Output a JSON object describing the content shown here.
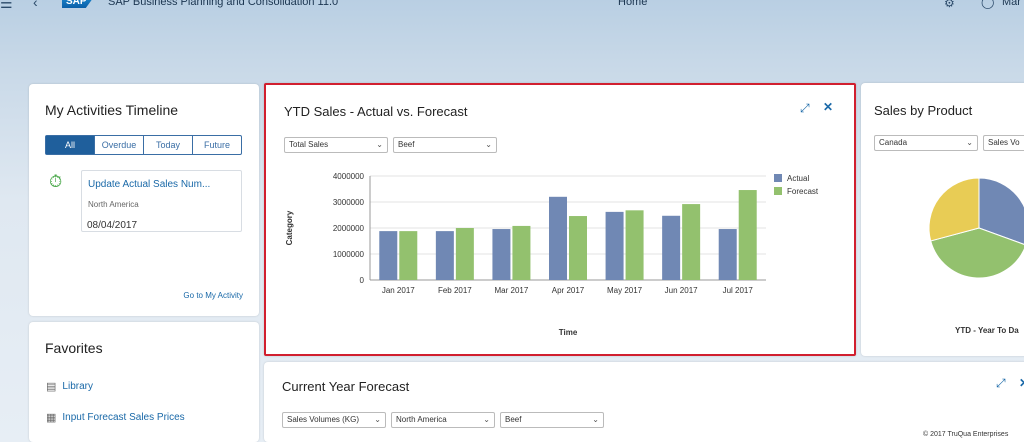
{
  "shell": {
    "menu_icon": "☰",
    "back_icon": "‹",
    "logo": "SAP",
    "app_title": "SAP Business Planning and Consolidation 11.0",
    "home": "Home",
    "gear_icon": "⚙",
    "user_icon": "◯",
    "user_name": "Mar"
  },
  "activities": {
    "title": "My Activities Timeline",
    "tabs": [
      "All",
      "Overdue",
      "Today",
      "Future"
    ],
    "active_tab": "All",
    "item": {
      "title": "Update Actual Sales Num...",
      "region": "North America",
      "date": "08/04/2017"
    },
    "link": "Go to My Activity"
  },
  "favorites": {
    "title": "Favorites",
    "items": [
      "Library",
      "Input Forecast Sales Prices"
    ]
  },
  "ytd": {
    "title": "YTD Sales - Actual vs. Forecast",
    "filters": [
      "Total Sales",
      "Beef"
    ]
  },
  "chart_data": {
    "type": "bar",
    "title": "",
    "xlabel": "Time",
    "ylabel": "Category",
    "categories": [
      "Jan 2017",
      "Feb 2017",
      "Mar 2017",
      "Apr 2017",
      "May 2017",
      "Jun 2017",
      "Jul 2017"
    ],
    "series": [
      {
        "name": "Actual",
        "color": "#7088b4",
        "values": [
          1880000,
          1880000,
          1960000,
          3200000,
          2620000,
          2470000,
          1960000
        ]
      },
      {
        "name": "Forecast",
        "color": "#93c16e",
        "values": [
          1880000,
          2000000,
          2080000,
          2460000,
          2680000,
          2920000,
          3460000
        ]
      }
    ],
    "ylim": [
      0,
      4000000
    ],
    "yticks": [
      "0",
      "1000000",
      "2000000",
      "3000000",
      "4000000"
    ],
    "grid": true,
    "legend": "right"
  },
  "product": {
    "title": "Sales by Product",
    "filters": [
      "Canada",
      "Sales Vo"
    ],
    "caption": "YTD - Year To Da",
    "pie_colors": [
      "#7088b4",
      "#93c16e",
      "#e8cc55"
    ]
  },
  "forecast": {
    "title": "Current Year Forecast",
    "filters": [
      "Sales Volumes (KG)",
      "North America",
      "Beef"
    ]
  },
  "footer": {
    "copyright": "© 2017 TruQua Enterprises"
  }
}
